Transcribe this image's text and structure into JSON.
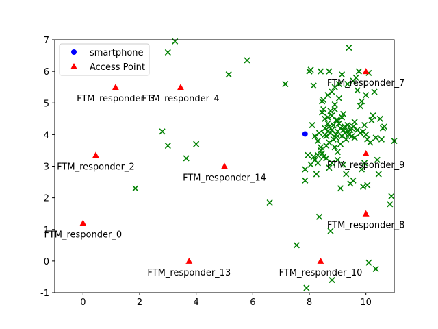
{
  "chart_data": {
    "type": "scatter",
    "xlim": [
      -1,
      11
    ],
    "ylim": [
      -1,
      7
    ],
    "xticks": [
      0,
      2,
      4,
      6,
      8,
      10
    ],
    "yticks": [
      -1,
      0,
      1,
      2,
      3,
      4,
      5,
      6,
      7
    ],
    "grid": false,
    "legend_position": "top-left",
    "series": [
      {
        "name": "smartphone",
        "marker": "circle",
        "color": "#0000ff",
        "points": [
          [
            7.85,
            4.02
          ]
        ]
      },
      {
        "name": "Access Point",
        "marker": "triangle",
        "color": "#ff0000",
        "points": [
          [
            0,
            1.2
          ],
          [
            0.45,
            3.35
          ],
          [
            1.15,
            5.5
          ],
          [
            3.45,
            5.5
          ],
          [
            5.0,
            3.0
          ],
          [
            3.75,
            0.0
          ],
          [
            8.4,
            0.0
          ],
          [
            10.0,
            6.0
          ],
          [
            10.0,
            3.4
          ],
          [
            10.0,
            1.5
          ]
        ]
      },
      {
        "name": "",
        "marker": "x",
        "color": "#008000",
        "points": [
          [
            1.85,
            2.3
          ],
          [
            2.8,
            4.1
          ],
          [
            3.0,
            3.65
          ],
          [
            3.0,
            6.6
          ],
          [
            3.25,
            6.95
          ],
          [
            3.65,
            3.25
          ],
          [
            4.0,
            3.7
          ],
          [
            5.15,
            5.9
          ],
          [
            5.8,
            6.35
          ],
          [
            6.6,
            1.85
          ],
          [
            7.15,
            5.6
          ],
          [
            7.55,
            0.5
          ],
          [
            7.9,
            -0.85
          ],
          [
            7.85,
            2.55
          ],
          [
            7.85,
            2.9
          ],
          [
            7.95,
            3.35
          ],
          [
            8.0,
            6.0
          ],
          [
            8.05,
            6.05
          ],
          [
            8.1,
            4.3
          ],
          [
            8.15,
            5.55
          ],
          [
            8.2,
            3.2
          ],
          [
            8.25,
            2.75
          ],
          [
            8.3,
            3.1
          ],
          [
            8.35,
            1.4
          ],
          [
            8.4,
            3.5
          ],
          [
            8.4,
            6.0
          ],
          [
            8.45,
            4.7
          ],
          [
            8.45,
            5.05
          ],
          [
            8.5,
            3.3
          ],
          [
            8.55,
            4.2
          ],
          [
            8.6,
            3.65
          ],
          [
            8.65,
            4.35
          ],
          [
            8.65,
            5.25
          ],
          [
            8.7,
            6.0
          ],
          [
            8.7,
            2.95
          ],
          [
            8.75,
            0.95
          ],
          [
            8.8,
            -0.6
          ],
          [
            8.8,
            4.6
          ],
          [
            8.85,
            3.85
          ],
          [
            8.9,
            5.5
          ],
          [
            8.9,
            4.95
          ],
          [
            8.95,
            4.45
          ],
          [
            9.0,
            3.45
          ],
          [
            9.05,
            5.15
          ],
          [
            9.1,
            2.3
          ],
          [
            9.1,
            3.7
          ],
          [
            9.15,
            5.9
          ],
          [
            9.2,
            4.65
          ],
          [
            9.25,
            4.05
          ],
          [
            9.3,
            2.75
          ],
          [
            9.35,
            5.6
          ],
          [
            9.4,
            6.75
          ],
          [
            9.45,
            2.45
          ],
          [
            9.5,
            4.2
          ],
          [
            9.55,
            2.55
          ],
          [
            9.6,
            3.9
          ],
          [
            9.65,
            5.8
          ],
          [
            9.7,
            5.4
          ],
          [
            9.75,
            6.0
          ],
          [
            9.8,
            4.9
          ],
          [
            9.85,
            5.05
          ],
          [
            9.85,
            2.9
          ],
          [
            9.9,
            2.35
          ],
          [
            9.95,
            3.1
          ],
          [
            9.95,
            4.3
          ],
          [
            10.0,
            5.25
          ],
          [
            10.0,
            4.0
          ],
          [
            10.05,
            2.4
          ],
          [
            10.1,
            5.95
          ],
          [
            10.15,
            3.75
          ],
          [
            10.1,
            -0.05
          ],
          [
            10.2,
            4.45
          ],
          [
            10.25,
            4.6
          ],
          [
            10.3,
            5.35
          ],
          [
            10.35,
            3.9
          ],
          [
            10.35,
            -0.25
          ],
          [
            10.4,
            3.2
          ],
          [
            10.45,
            2.75
          ],
          [
            10.5,
            4.5
          ],
          [
            10.55,
            3.85
          ],
          [
            10.6,
            4.2
          ],
          [
            10.65,
            4.25
          ],
          [
            10.85,
            1.8
          ],
          [
            10.9,
            2.05
          ],
          [
            11.0,
            3.8
          ],
          [
            8.05,
            3.05
          ],
          [
            8.2,
            3.95
          ],
          [
            8.3,
            3.8
          ],
          [
            8.35,
            4.05
          ],
          [
            8.5,
            4.8
          ],
          [
            8.55,
            4.0
          ],
          [
            8.6,
            3.95
          ],
          [
            8.65,
            4.1
          ],
          [
            8.7,
            4.25
          ],
          [
            8.75,
            4.05
          ],
          [
            8.8,
            4.15
          ],
          [
            8.85,
            4.3
          ],
          [
            8.9,
            3.6
          ],
          [
            8.95,
            4.0
          ],
          [
            9.0,
            4.1
          ],
          [
            9.05,
            4.35
          ],
          [
            9.1,
            4.2
          ],
          [
            9.15,
            3.95
          ],
          [
            9.2,
            4.15
          ],
          [
            9.25,
            4.25
          ],
          [
            9.3,
            3.85
          ],
          [
            9.35,
            4.1
          ],
          [
            9.4,
            4.0
          ],
          [
            9.45,
            4.15
          ],
          [
            9.5,
            3.95
          ],
          [
            8.55,
            4.5
          ],
          [
            8.65,
            4.55
          ],
          [
            8.75,
            4.75
          ],
          [
            8.9,
            4.8
          ],
          [
            9.0,
            4.45
          ],
          [
            9.15,
            4.55
          ],
          [
            9.35,
            4.3
          ],
          [
            9.55,
            4.25
          ],
          [
            9.7,
            4.15
          ],
          [
            9.8,
            4.05
          ],
          [
            8.3,
            3.35
          ],
          [
            8.45,
            3.4
          ],
          [
            8.6,
            3.25
          ],
          [
            8.8,
            3.1
          ],
          [
            9.0,
            3.2
          ],
          [
            9.2,
            3.05
          ],
          [
            8.15,
            3.3
          ],
          [
            8.4,
            3.6
          ],
          [
            8.7,
            3.75
          ],
          [
            8.95,
            3.9
          ],
          [
            9.6,
            4.4
          ],
          [
            9.9,
            4.1
          ],
          [
            10.05,
            3.85
          ],
          [
            8.5,
            5.1
          ],
          [
            8.8,
            5.35
          ],
          [
            9.05,
            5.6
          ],
          [
            9.55,
            5.7
          ]
        ]
      }
    ],
    "annotations": [
      {
        "text": "FTM_responder_0",
        "x": 0,
        "y": 1.2
      },
      {
        "text": "FTM_responder_2",
        "x": 0.45,
        "y": 3.35
      },
      {
        "text": "FTM_responder_3",
        "x": 1.15,
        "y": 5.5
      },
      {
        "text": "FTM_responder_4",
        "x": 3.45,
        "y": 5.5
      },
      {
        "text": "FTM_responder_14",
        "x": 5.0,
        "y": 3.0
      },
      {
        "text": "FTM_responder_13",
        "x": 3.75,
        "y": 0.0
      },
      {
        "text": "FTM_responder_10",
        "x": 8.4,
        "y": 0.0
      },
      {
        "text": "FTM_responder_7",
        "x": 10.0,
        "y": 6.0
      },
      {
        "text": "FTM_responder_9",
        "x": 10.0,
        "y": 3.4
      },
      {
        "text": "FTM_responder_8",
        "x": 10.0,
        "y": 1.5
      }
    ]
  }
}
